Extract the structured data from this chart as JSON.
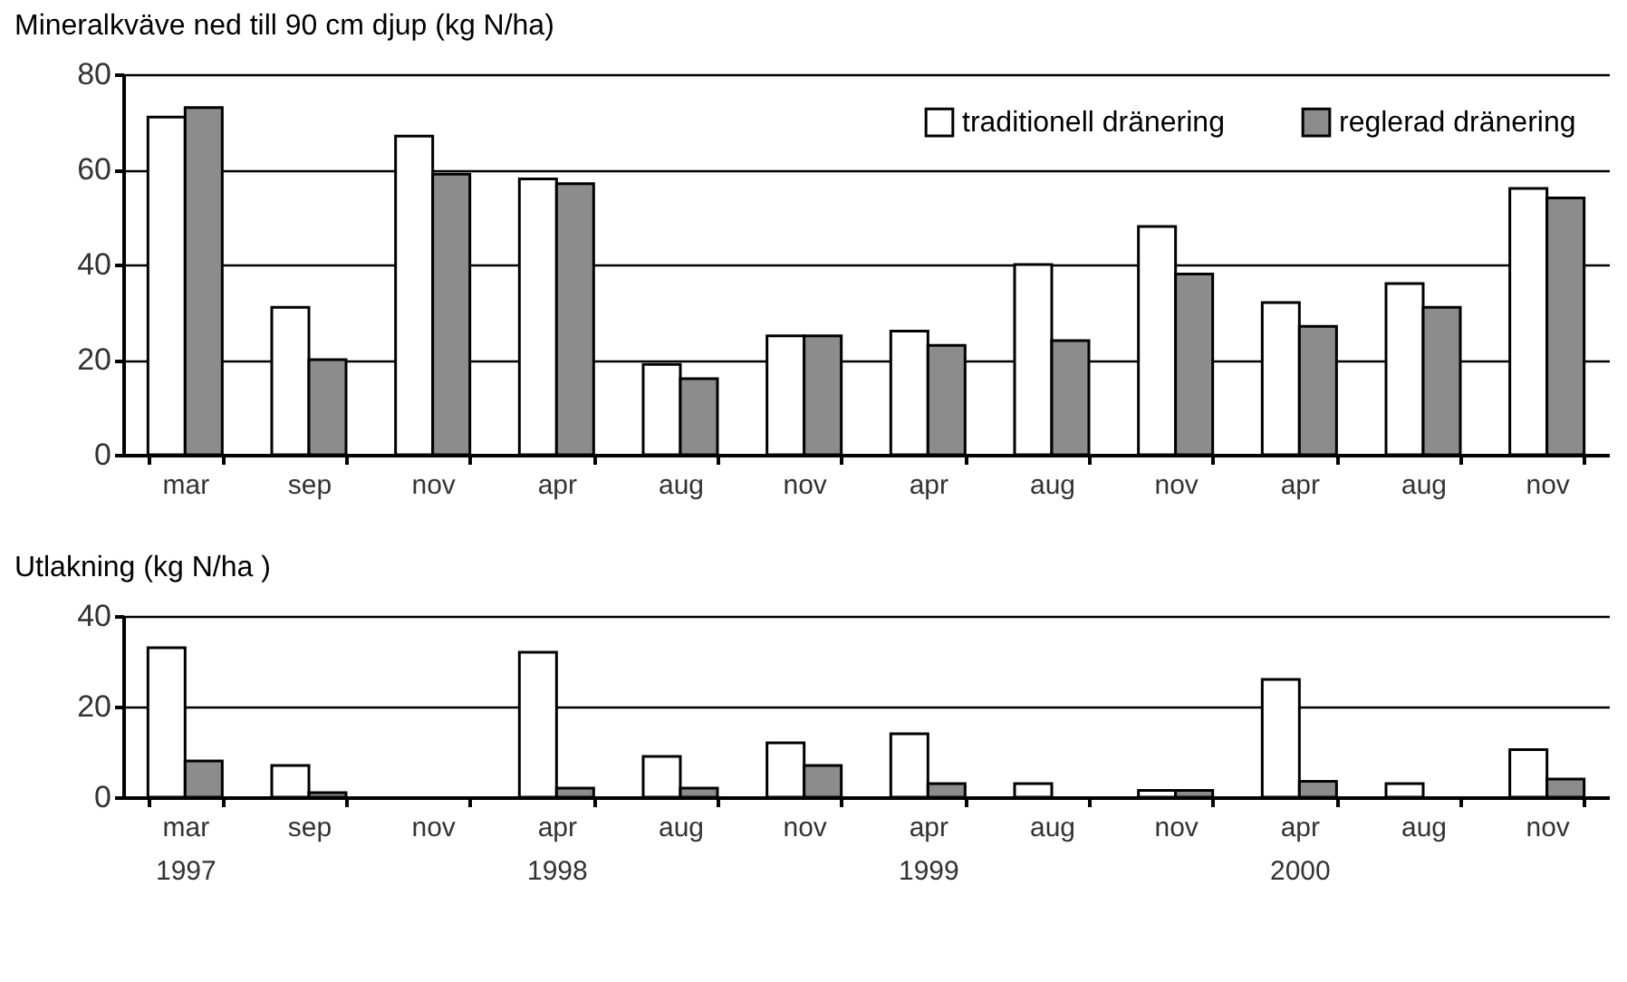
{
  "chart_data": [
    {
      "type": "bar",
      "title": "Mineralkväve ned till 90 cm djup (kg N/ha)",
      "categories": [
        "mar",
        "sep",
        "nov",
        "apr",
        "aug",
        "nov",
        "apr",
        "aug",
        "nov",
        "apr",
        "aug",
        "nov"
      ],
      "series": [
        {
          "name": "traditionell dränering",
          "color": "#ffffff",
          "values": [
            71,
            31,
            67,
            58,
            19,
            25,
            26,
            40,
            48,
            32,
            36,
            56
          ]
        },
        {
          "name": "reglerad dränering",
          "color": "#8c8c8c",
          "values": [
            73,
            20,
            59,
            57,
            16,
            25,
            23,
            24,
            38,
            27,
            31,
            54
          ]
        }
      ],
      "ylim": [
        0,
        80
      ],
      "yticks": [
        0,
        20,
        40,
        60,
        80
      ],
      "grid": "y",
      "legend": "top right"
    },
    {
      "type": "bar",
      "title": "Utlakning (kg N/ha )",
      "categories": [
        "mar\n1997",
        "sep",
        "nov",
        "apr\n1998",
        "aug",
        "nov",
        "apr\n1999",
        "aug",
        "nov",
        "apr\n2000",
        "aug",
        "nov"
      ],
      "series": [
        {
          "color": "#ffffff",
          "values": [
            33,
            7,
            null,
            32,
            9,
            12,
            14,
            3,
            1.5,
            26,
            3,
            10.5
          ]
        },
        {
          "color": "#8c8c8c",
          "values": [
            8,
            1,
            null,
            2,
            2,
            7,
            3,
            null,
            1.5,
            3.5,
            null,
            4
          ]
        }
      ],
      "ylim": [
        0,
        40
      ],
      "yticks": [
        0,
        20,
        40
      ],
      "grid": "y"
    }
  ]
}
